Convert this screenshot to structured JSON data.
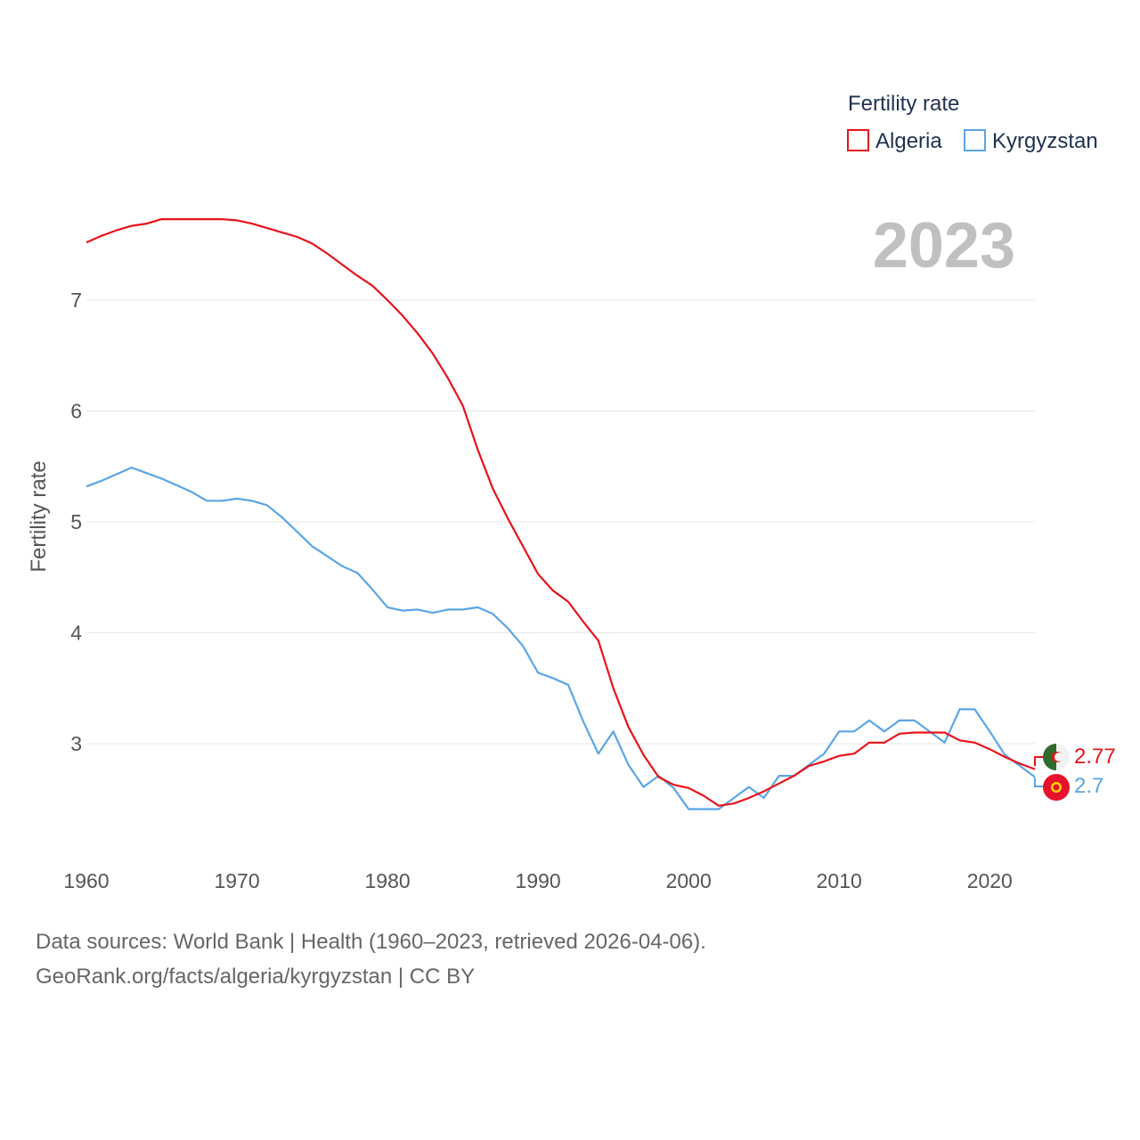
{
  "chart_data": {
    "type": "line",
    "ylabel": "Fertility rate",
    "ylim": [
      2.0,
      7.75
    ],
    "xlim": [
      1960,
      2023
    ],
    "xticks": [
      1960,
      1970,
      1980,
      1990,
      2000,
      2010,
      2020
    ],
    "yticks": [
      3,
      4,
      5,
      6,
      7
    ],
    "legend_title": "Fertility rate",
    "legend_position": "top-right",
    "year_label": "2023",
    "x": [
      1960,
      1961,
      1962,
      1963,
      1964,
      1965,
      1966,
      1967,
      1968,
      1969,
      1970,
      1971,
      1972,
      1973,
      1974,
      1975,
      1976,
      1977,
      1978,
      1979,
      1980,
      1981,
      1982,
      1983,
      1984,
      1985,
      1986,
      1987,
      1988,
      1989,
      1990,
      1991,
      1992,
      1993,
      1994,
      1995,
      1996,
      1997,
      1998,
      1999,
      2000,
      2001,
      2002,
      2003,
      2004,
      2005,
      2006,
      2007,
      2008,
      2009,
      2010,
      2011,
      2012,
      2013,
      2014,
      2015,
      2016,
      2017,
      2018,
      2019,
      2020,
      2021,
      2022,
      2023
    ],
    "series": [
      {
        "name": "Algeria",
        "color": "#e8131b",
        "end_value": "2.77",
        "flag": "algeria-flag-icon",
        "values": [
          7.52,
          7.58,
          7.63,
          7.67,
          7.69,
          7.73,
          7.73,
          7.73,
          7.73,
          7.73,
          7.72,
          7.69,
          7.65,
          7.61,
          7.57,
          7.51,
          7.42,
          7.32,
          7.22,
          7.13,
          7.0,
          6.86,
          6.7,
          6.52,
          6.3,
          6.05,
          5.65,
          5.3,
          5.03,
          4.78,
          4.53,
          4.38,
          4.28,
          4.1,
          3.93,
          3.5,
          3.15,
          2.9,
          2.7,
          2.63,
          2.6,
          2.53,
          2.44,
          2.46,
          2.51,
          2.57,
          2.64,
          2.71,
          2.8,
          2.84,
          2.89,
          2.91,
          3.01,
          3.01,
          3.09,
          3.1,
          3.1,
          3.1,
          3.03,
          3.01,
          2.95,
          2.88,
          2.82,
          2.77
        ]
      },
      {
        "name": "Kyrgyzstan",
        "color": "#5aa5e6",
        "end_value": "2.7",
        "flag": "kyrgyzstan-flag-icon",
        "values": [
          5.32,
          5.37,
          5.43,
          5.49,
          5.44,
          5.39,
          5.33,
          5.27,
          5.19,
          5.19,
          5.21,
          5.19,
          5.15,
          5.04,
          4.91,
          4.78,
          4.69,
          4.6,
          4.54,
          4.39,
          4.23,
          4.2,
          4.21,
          4.18,
          4.21,
          4.21,
          4.23,
          4.17,
          4.04,
          3.88,
          3.64,
          3.59,
          3.53,
          3.2,
          2.91,
          3.11,
          2.81,
          2.61,
          2.71,
          2.6,
          2.41,
          2.41,
          2.41,
          2.51,
          2.61,
          2.51,
          2.71,
          2.71,
          2.81,
          2.91,
          3.11,
          3.11,
          3.21,
          3.11,
          3.21,
          3.21,
          3.11,
          3.01,
          3.31,
          3.31,
          3.11,
          2.9,
          2.8,
          2.7
        ]
      }
    ]
  },
  "footer": {
    "line1": "Data sources: World Bank | Health (1960–2023, retrieved 2026-04-06).",
    "line2": "GeoRank.org/facts/algeria/kyrgyzstan | CC BY"
  }
}
